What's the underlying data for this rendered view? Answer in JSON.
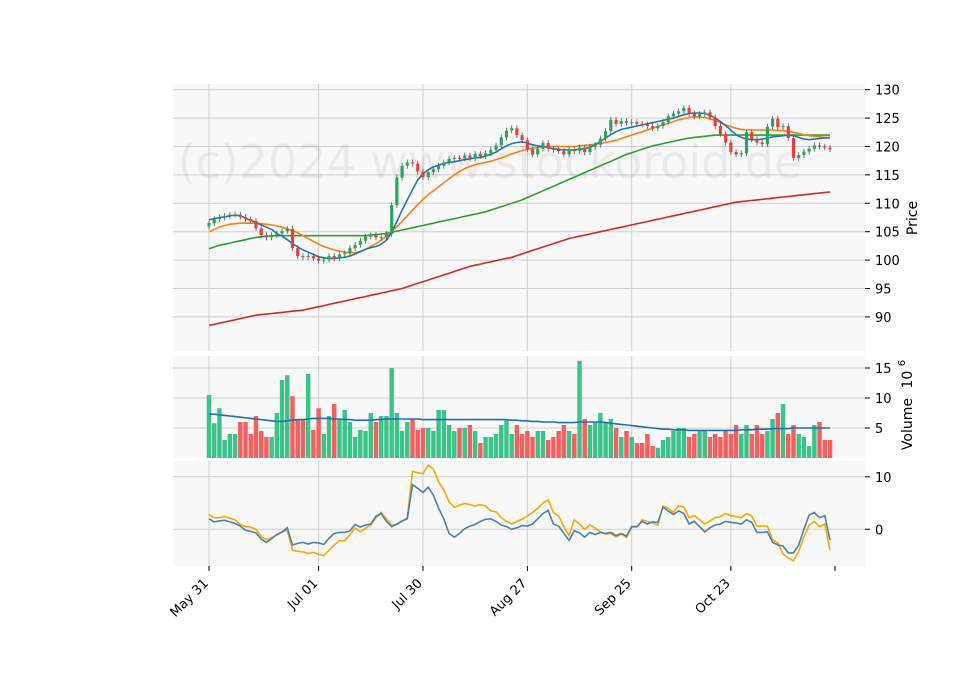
{
  "chart_data": {
    "type": "candlestick",
    "watermark": "(c)2024 www.stockoroid.de",
    "colors": {
      "up": "#26a65b",
      "down": "#ef3b3b",
      "vol_up": "#3cc38a",
      "vol_down": "#f26060",
      "sma_short": "#1f77b4",
      "sma_mid": "#ff7f0e",
      "sma_long": "#2ca02c",
      "sma_200": "#d62728",
      "vol_avg": "#1f6fb4",
      "macd": "#4682b4",
      "signal": "#ffa500"
    },
    "x_ticks": [
      "May 31",
      "Jul 01",
      "Jul 30",
      "Aug 27",
      "Sep 25",
      "Oct 23"
    ],
    "x_tick_indices": [
      0,
      21,
      41,
      61,
      81,
      100
    ],
    "n_days": 120,
    "price_panel": {
      "ylabel": "Price",
      "ylim": [
        84,
        131
      ],
      "yticks": [
        90,
        95,
        100,
        105,
        110,
        115,
        120,
        125,
        130
      ],
      "closes": [
        106.5,
        107.2,
        107.5,
        107.8,
        108.0,
        108.0,
        107.6,
        107.2,
        106.9,
        105.6,
        104.4,
        104.0,
        104.4,
        104.7,
        105.1,
        105.5,
        102.1,
        100.7,
        100.5,
        100.7,
        100.3,
        99.9,
        100.1,
        100.7,
        100.3,
        101.0,
        101.2,
        102.1,
        102.7,
        103.4,
        104.1,
        104.4,
        104.0,
        104.1,
        104.6,
        109.7,
        114.5,
        116.6,
        117.2,
        117.0,
        115.6,
        114.6,
        115.5,
        116.0,
        116.6,
        117.2,
        117.8,
        118.0,
        117.9,
        118.4,
        117.9,
        118.7,
        118.3,
        118.8,
        119.4,
        120.2,
        121.6,
        122.8,
        123.2,
        122.0,
        121.1,
        119.5,
        118.6,
        119.6,
        120.6,
        119.6,
        119.4,
        119.2,
        118.6,
        119.5,
        119.2,
        119.8,
        119.0,
        119.9,
        120.3,
        121.4,
        122.7,
        124.7,
        124.0,
        124.5,
        124.2,
        124.3,
        124.0,
        123.9,
        123.6,
        123.2,
        123.6,
        124.3,
        125.3,
        125.8,
        126.2,
        126.8,
        125.8,
        125.3,
        125.7,
        126.0,
        125.1,
        123.6,
        122.2,
        120.7,
        119.0,
        118.6,
        118.8,
        122.5,
        121.3,
        120.7,
        120.4,
        123.5,
        124.9,
        123.4,
        123.6,
        121.5,
        118.0,
        118.5,
        119.1,
        119.6,
        120.2,
        120.0,
        119.8,
        119.5
      ],
      "sma_short": [
        107.1,
        107.3,
        107.5,
        107.6,
        107.8,
        107.9,
        107.8,
        107.4,
        107.0,
        106.6,
        106.2,
        105.8,
        105.4,
        104.7,
        104.2,
        103.6,
        102.9,
        102.3,
        101.8,
        101.4,
        101.0,
        100.6,
        100.4,
        100.3,
        100.3,
        100.4,
        100.5,
        100.7,
        101.1,
        101.5,
        101.9,
        102.2,
        102.4,
        102.8,
        103.5,
        104.9,
        106.8,
        108.8,
        110.6,
        112.4,
        114.1,
        115.2,
        115.9,
        116.4,
        116.7,
        117.0,
        117.2,
        117.3,
        117.5,
        117.7,
        117.8,
        118.0,
        118.1,
        118.3,
        118.6,
        119.0,
        119.6,
        120.1,
        120.5,
        120.7,
        120.8,
        120.6,
        120.3,
        120.1,
        120.0,
        119.8,
        119.6,
        119.5,
        119.4,
        119.4,
        119.4,
        119.5,
        119.6,
        119.9,
        120.3,
        120.9,
        121.5,
        122.1,
        122.6,
        123.0,
        123.2,
        123.4,
        123.6,
        123.8,
        124.0,
        124.2,
        124.4,
        124.6,
        124.8,
        125.0,
        125.3,
        125.6,
        125.8,
        125.9,
        125.9,
        125.8,
        125.5,
        125.0,
        124.4,
        123.7,
        122.9,
        122.1,
        121.6,
        121.3,
        121.2,
        121.2,
        121.3,
        121.5,
        121.7,
        121.8,
        121.9,
        122.0,
        121.9,
        121.6,
        121.3,
        121.2,
        121.3,
        121.4,
        121.5,
        121.5
      ],
      "sma_mid": [
        105.0,
        105.4,
        105.8,
        106.1,
        106.3,
        106.4,
        106.5,
        106.5,
        106.5,
        106.5,
        106.4,
        106.3,
        106.2,
        106.0,
        105.8,
        105.5,
        105.2,
        104.8,
        104.3,
        103.8,
        103.3,
        102.8,
        102.4,
        102.1,
        101.8,
        101.6,
        101.4,
        101.3,
        101.3,
        101.5,
        101.9,
        102.4,
        102.9,
        103.5,
        104.2,
        105.0,
        105.9,
        106.8,
        107.8,
        108.8,
        109.8,
        110.7,
        111.5,
        112.2,
        112.9,
        113.6,
        114.3,
        115.0,
        115.6,
        116.1,
        116.5,
        116.8,
        117.0,
        117.2,
        117.4,
        117.7,
        118.0,
        118.3,
        118.7,
        119.0,
        119.3,
        119.5,
        119.7,
        119.8,
        119.9,
        120.0,
        120.0,
        120.0,
        120.0,
        120.0,
        120.0,
        120.1,
        120.2,
        120.3,
        120.4,
        120.5,
        120.7,
        120.9,
        121.1,
        121.4,
        121.7,
        122.0,
        122.3,
        122.6,
        122.9,
        123.2,
        123.5,
        123.8,
        124.1,
        124.4,
        124.7,
        124.9,
        125.1,
        125.2,
        125.2,
        125.1,
        124.9,
        124.6,
        124.2,
        123.8,
        123.5,
        123.2,
        123.0,
        122.9,
        122.9,
        122.9,
        122.9,
        122.9,
        122.9,
        122.8,
        122.8,
        122.7,
        122.5,
        122.3,
        122.1,
        121.9,
        121.8,
        121.7,
        121.6,
        121.6
      ],
      "sma_long": [
        102.0,
        102.3,
        102.6,
        102.8,
        103.0,
        103.2,
        103.4,
        103.6,
        103.8,
        104.0,
        104.1,
        104.2,
        104.3,
        104.3,
        104.3,
        104.3,
        104.3,
        104.3,
        104.3,
        104.3,
        104.3,
        104.3,
        104.3,
        104.3,
        104.3,
        104.3,
        104.3,
        104.3,
        104.3,
        104.3,
        104.3,
        104.4,
        104.5,
        104.6,
        104.7,
        104.9,
        105.1,
        105.3,
        105.5,
        105.7,
        105.9,
        106.1,
        106.3,
        106.5,
        106.7,
        106.9,
        107.1,
        107.3,
        107.5,
        107.7,
        107.9,
        108.1,
        108.3,
        108.5,
        108.8,
        109.1,
        109.4,
        109.7,
        110.0,
        110.3,
        110.6,
        111.0,
        111.4,
        111.8,
        112.2,
        112.6,
        113.0,
        113.4,
        113.8,
        114.2,
        114.6,
        115.0,
        115.4,
        115.8,
        116.2,
        116.6,
        117.0,
        117.4,
        117.8,
        118.2,
        118.6,
        118.9,
        119.2,
        119.5,
        119.8,
        120.1,
        120.3,
        120.5,
        120.7,
        120.9,
        121.1,
        121.3,
        121.5,
        121.6,
        121.7,
        121.8,
        121.9,
        122.0,
        122.0,
        122.0,
        122.0,
        122.0,
        122.0,
        122.0,
        122.0,
        122.0,
        122.0,
        122.0,
        122.0,
        122.0,
        122.0,
        122.0,
        122.0,
        122.0,
        122.0,
        122.0,
        122.0,
        122.0,
        122.0,
        122.0
      ],
      "sma_200": [
        88.5,
        88.7,
        88.9,
        89.1,
        89.3,
        89.5,
        89.7,
        89.9,
        90.1,
        90.3,
        90.4,
        90.5,
        90.6,
        90.7,
        90.8,
        90.9,
        91.0,
        91.1,
        91.2,
        91.4,
        91.6,
        91.8,
        92.0,
        92.2,
        92.4,
        92.6,
        92.8,
        93.0,
        93.2,
        93.4,
        93.6,
        93.8,
        94.0,
        94.2,
        94.4,
        94.6,
        94.8,
        95.0,
        95.3,
        95.6,
        95.9,
        96.2,
        96.5,
        96.8,
        97.1,
        97.4,
        97.7,
        98.0,
        98.3,
        98.6,
        98.9,
        99.1,
        99.3,
        99.5,
        99.7,
        99.9,
        100.1,
        100.3,
        100.5,
        100.8,
        101.1,
        101.4,
        101.7,
        102.0,
        102.3,
        102.6,
        102.9,
        103.2,
        103.5,
        103.8,
        104.0,
        104.2,
        104.4,
        104.6,
        104.8,
        105.0,
        105.2,
        105.4,
        105.6,
        105.8,
        106.0,
        106.2,
        106.4,
        106.6,
        106.8,
        107.0,
        107.2,
        107.4,
        107.6,
        107.8,
        108.0,
        108.2,
        108.4,
        108.6,
        108.8,
        109.0,
        109.2,
        109.4,
        109.6,
        109.8,
        110.0,
        110.2,
        110.3,
        110.4,
        110.5,
        110.6,
        110.7,
        110.8,
        110.9,
        111.0,
        111.1,
        111.2,
        111.3,
        111.4,
        111.5,
        111.6,
        111.7,
        111.8,
        111.9,
        112.0
      ]
    },
    "volume_panel": {
      "ylabel": "Volume",
      "scale_label": "10",
      "scale_exp": "6",
      "ylim": [
        0,
        17
      ],
      "yticks": [
        5,
        10,
        15
      ],
      "volumes": [
        10.5,
        5.8,
        8.3,
        3.0,
        4.0,
        4.0,
        6.0,
        6.0,
        4.0,
        7.0,
        4.5,
        3.5,
        3.5,
        7.5,
        13.0,
        13.8,
        10.3,
        6.5,
        6.5,
        14.0,
        4.7,
        8.3,
        4.0,
        7.0,
        9.0,
        6.5,
        8.0,
        6.0,
        3.5,
        4.7,
        4.5,
        7.5,
        6.0,
        7.0,
        7.0,
        15.0,
        7.5,
        4.5,
        6.0,
        6.5,
        4.7,
        5.0,
        5.0,
        4.5,
        8.0,
        8.0,
        5.5,
        4.5,
        5.0,
        5.0,
        5.5,
        4.5,
        2.5,
        3.5,
        3.5,
        4.0,
        5.5,
        6.5,
        4.0,
        5.5,
        4.0,
        4.5,
        3.5,
        4.5,
        4.5,
        3.0,
        3.5,
        4.5,
        5.5,
        4.5,
        4.0,
        16.2,
        6.5,
        5.5,
        6.0,
        7.5,
        6.0,
        6.5,
        5.0,
        3.5,
        4.5,
        3.5,
        2.5,
        2.5,
        4.0,
        2.0,
        1.7,
        3.0,
        3.5,
        4.5,
        5.0,
        5.0,
        3.5,
        4.0,
        4.5,
        4.5,
        3.5,
        4.0,
        3.5,
        4.5,
        4.0,
        5.5,
        4.0,
        5.5,
        4.0,
        5.5,
        4.0,
        4.5,
        6.5,
        7.5,
        9.0,
        4.0,
        5.5,
        4.0,
        3.5,
        2.0,
        5.5,
        6.0,
        3.0,
        3.0
      ],
      "avg": [
        7.3,
        7.3,
        7.2,
        7.1,
        7.0,
        6.9,
        6.8,
        6.7,
        6.6,
        6.5,
        6.4,
        6.3,
        6.2,
        6.1,
        6.1,
        6.2,
        6.3,
        6.4,
        6.4,
        6.5,
        6.6,
        6.6,
        6.6,
        6.6,
        6.5,
        6.5,
        6.4,
        6.4,
        6.3,
        6.3,
        6.3,
        6.3,
        6.4,
        6.4,
        6.5,
        6.5,
        6.5,
        6.5,
        6.5,
        6.5,
        6.5,
        6.4,
        6.4,
        6.4,
        6.4,
        6.4,
        6.4,
        6.4,
        6.4,
        6.4,
        6.4,
        6.4,
        6.4,
        6.4,
        6.4,
        6.4,
        6.4,
        6.4,
        6.3,
        6.3,
        6.2,
        6.2,
        6.1,
        6.1,
        6.0,
        6.0,
        6.0,
        5.9,
        5.9,
        5.9,
        5.9,
        6.0,
        6.0,
        6.0,
        6.0,
        6.0,
        5.9,
        5.8,
        5.7,
        5.6,
        5.5,
        5.4,
        5.3,
        5.2,
        5.1,
        5.0,
        4.9,
        4.8,
        4.8,
        4.7,
        4.7,
        4.7,
        4.6,
        4.6,
        4.6,
        4.6,
        4.6,
        4.6,
        4.6,
        4.6,
        4.6,
        4.6,
        4.7,
        4.7,
        4.7,
        4.8,
        4.8,
        4.8,
        4.9,
        4.9,
        4.9,
        4.9,
        5.0,
        5.0,
        5.0,
        5.0,
        5.0,
        5.0,
        5.0,
        5.0
      ]
    },
    "macd_panel": {
      "ylim": [
        -7,
        13
      ],
      "yticks": [
        0,
        10
      ],
      "macd": [
        2.0,
        1.4,
        1.6,
        1.7,
        1.4,
        1.1,
        0.6,
        -0.2,
        -0.4,
        -0.7,
        -1.9,
        -2.5,
        -1.8,
        -1.0,
        -0.5,
        0.3,
        -3.0,
        -2.7,
        -2.5,
        -2.8,
        -2.5,
        -2.6,
        -2.9,
        -1.7,
        -0.8,
        -0.6,
        -0.6,
        -0.3,
        0.9,
        0.4,
        0.8,
        1.0,
        2.5,
        3.0,
        1.5,
        0.5,
        1.0,
        1.6,
        2.0,
        8.5,
        7.8,
        7.0,
        8.0,
        6.5,
        4.0,
        2.0,
        -0.8,
        -1.5,
        -0.8,
        0.1,
        0.6,
        0.9,
        1.5,
        1.9,
        2.0,
        1.5,
        0.8,
        0.5,
        0.0,
        0.3,
        0.7,
        0.6,
        1.0,
        2.0,
        3.0,
        3.6,
        1.0,
        0.6,
        -0.8,
        -2.1,
        -0.3,
        -0.7,
        -1.5,
        -0.6,
        -1.0,
        -0.6,
        -0.8,
        -0.6,
        -1.2,
        -0.8,
        -1.3,
        0.5,
        0.5,
        1.5,
        1.0,
        1.4,
        1.3,
        4.2,
        3.5,
        2.8,
        3.5,
        3.0,
        1.0,
        1.5,
        0.5,
        -0.5,
        0.3,
        0.8,
        1.0,
        1.5,
        1.3,
        1.2,
        1.0,
        1.8,
        1.3,
        -0.6,
        -0.6,
        -0.5,
        -2.5,
        -3.0,
        -3.2,
        -4.5,
        -4.5,
        -3.0,
        0.0,
        2.7,
        3.2,
        2.2,
        2.6,
        -2.0
      ],
      "signal": [
        2.8,
        2.2,
        2.2,
        2.4,
        2.1,
        1.8,
        0.9,
        0.5,
        0.4,
        0.0,
        -1.4,
        -2.0,
        -1.6,
        -1.1,
        -0.5,
        -0.2,
        -4.0,
        -4.2,
        -4.3,
        -4.6,
        -4.4,
        -4.8,
        -5.0,
        -4.0,
        -3.0,
        -2.2,
        -2.2,
        -1.0,
        0.2,
        -0.5,
        0.2,
        0.8,
        2.2,
        3.2,
        2.0,
        0.8,
        0.9,
        1.5,
        2.2,
        11.0,
        10.8,
        10.6,
        12.2,
        11.5,
        9.0,
        7.5,
        5.2,
        4.2,
        4.6,
        4.9,
        4.7,
        4.4,
        4.7,
        4.4,
        3.5,
        3.3,
        2.2,
        1.5,
        1.0,
        1.5,
        1.9,
        2.5,
        3.2,
        4.0,
        5.0,
        5.6,
        3.2,
        2.5,
        0.5,
        -1.2,
        1.8,
        1.0,
        0.0,
        0.8,
        0.2,
        -0.5,
        -0.9,
        -0.8,
        -1.5,
        -0.9,
        -1.6,
        0.4,
        0.4,
        1.8,
        1.5,
        1.2,
        0.8,
        4.4,
        4.0,
        3.2,
        4.5,
        4.2,
        2.2,
        2.6,
        1.8,
        1.0,
        1.6,
        2.2,
        2.4,
        3.0,
        2.6,
        2.4,
        2.2,
        3.0,
        2.5,
        0.6,
        0.6,
        0.6,
        -2.0,
        -2.6,
        -4.7,
        -5.5,
        -6.0,
        -4.2,
        -1.5,
        0.8,
        1.5,
        0.5,
        1.0,
        -4.0
      ]
    }
  }
}
